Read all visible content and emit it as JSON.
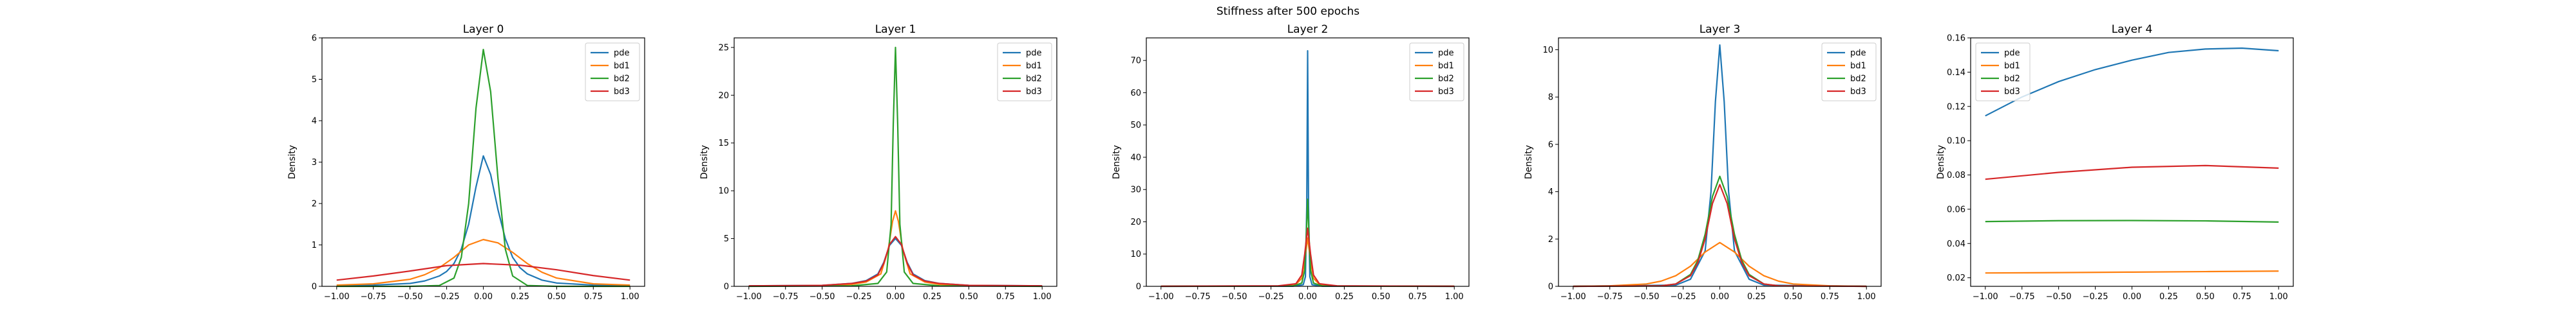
{
  "figure": {
    "suptitle": "Stiffness after 500 epochs"
  },
  "colors": {
    "pde": "#1f77b4",
    "bd1": "#ff7f0e",
    "bd2": "#2ca02c",
    "bd3": "#d62728",
    "axes": "#000000",
    "background": "#ffffff"
  },
  "chart_data": [
    {
      "type": "line",
      "title": "Layer 0",
      "xlabel": "",
      "ylabel": "Density",
      "xlim": [
        -1.1,
        1.1
      ],
      "ylim": [
        0,
        6
      ],
      "xticks": [
        -1.0,
        -0.75,
        -0.5,
        -0.25,
        0.0,
        0.25,
        0.5,
        0.75,
        1.0
      ],
      "xtick_labels": [
        "−1.00",
        "−0.75",
        "−0.50",
        "−0.25",
        "0.00",
        "0.25",
        "0.50",
        "0.75",
        "1.00"
      ],
      "yticks": [
        0,
        1,
        2,
        3,
        4,
        5,
        6
      ],
      "ytick_labels": [
        "0",
        "1",
        "2",
        "3",
        "4",
        "5",
        "6"
      ],
      "legend_position": "top-right",
      "grid": false,
      "series": [
        {
          "name": "pde",
          "x": [
            -1.0,
            -0.75,
            -0.5,
            -0.4,
            -0.3,
            -0.25,
            -0.2,
            -0.15,
            -0.1,
            -0.05,
            0.0,
            0.05,
            0.1,
            0.15,
            0.2,
            0.25,
            0.3,
            0.4,
            0.5,
            0.75,
            1.0
          ],
          "y": [
            0.02,
            0.03,
            0.07,
            0.13,
            0.25,
            0.36,
            0.55,
            0.9,
            1.5,
            2.4,
            3.15,
            2.7,
            1.85,
            1.15,
            0.7,
            0.45,
            0.3,
            0.15,
            0.08,
            0.03,
            0.02
          ]
        },
        {
          "name": "bd1",
          "x": [
            -1.0,
            -0.75,
            -0.5,
            -0.4,
            -0.3,
            -0.2,
            -0.1,
            0.0,
            0.1,
            0.2,
            0.3,
            0.4,
            0.5,
            0.75,
            1.0
          ],
          "y": [
            0.03,
            0.06,
            0.17,
            0.28,
            0.45,
            0.7,
            1.0,
            1.13,
            1.05,
            0.82,
            0.55,
            0.34,
            0.2,
            0.06,
            0.03
          ]
        },
        {
          "name": "bd2",
          "x": [
            -1.0,
            -0.5,
            -0.3,
            -0.2,
            -0.15,
            -0.1,
            -0.05,
            0.0,
            0.05,
            0.1,
            0.15,
            0.2,
            0.3,
            0.5,
            1.0
          ],
          "y": [
            0.0,
            0.0,
            0.02,
            0.2,
            0.7,
            2.0,
            4.3,
            5.72,
            4.7,
            2.6,
            0.9,
            0.25,
            0.02,
            0.0,
            0.0
          ]
        },
        {
          "name": "bd3",
          "x": [
            -1.0,
            -0.75,
            -0.5,
            -0.25,
            0.0,
            0.25,
            0.5,
            0.75,
            1.0
          ],
          "y": [
            0.15,
            0.25,
            0.37,
            0.5,
            0.55,
            0.51,
            0.4,
            0.26,
            0.15
          ]
        }
      ]
    },
    {
      "type": "line",
      "title": "Layer 1",
      "xlabel": "",
      "ylabel": "Density",
      "xlim": [
        -1.1,
        1.1
      ],
      "ylim": [
        0,
        26
      ],
      "xticks": [
        -1.0,
        -0.75,
        -0.5,
        -0.25,
        0.0,
        0.25,
        0.5,
        0.75,
        1.0
      ],
      "xtick_labels": [
        "−1.00",
        "−0.75",
        "−0.50",
        "−0.25",
        "0.00",
        "0.25",
        "0.50",
        "0.75",
        "1.00"
      ],
      "yticks": [
        0,
        5,
        10,
        15,
        20,
        25
      ],
      "ytick_labels": [
        "0",
        "5",
        "10",
        "15",
        "20",
        "25"
      ],
      "legend_position": "top-right",
      "grid": false,
      "series": [
        {
          "name": "pde",
          "x": [
            -1.0,
            -0.5,
            -0.3,
            -0.2,
            -0.12,
            -0.08,
            -0.04,
            0.0,
            0.04,
            0.08,
            0.12,
            0.2,
            0.3,
            0.5,
            1.0
          ],
          "y": [
            0.05,
            0.1,
            0.3,
            0.6,
            1.3,
            2.5,
            4.3,
            5.0,
            4.3,
            2.5,
            1.3,
            0.6,
            0.3,
            0.1,
            0.05
          ]
        },
        {
          "name": "bd1",
          "x": [
            -1.0,
            -0.5,
            -0.3,
            -0.2,
            -0.1,
            -0.05,
            -0.02,
            0.0,
            0.02,
            0.05,
            0.1,
            0.2,
            0.3,
            0.5,
            1.0
          ],
          "y": [
            0.02,
            0.08,
            0.2,
            0.45,
            1.3,
            3.8,
            6.8,
            7.9,
            6.8,
            3.8,
            1.3,
            0.45,
            0.2,
            0.08,
            0.02
          ]
        },
        {
          "name": "bd2",
          "x": [
            -1.0,
            -0.3,
            -0.12,
            -0.06,
            -0.03,
            -0.015,
            0.0,
            0.015,
            0.03,
            0.06,
            0.12,
            0.3,
            1.0
          ],
          "y": [
            0.0,
            0.05,
            0.3,
            1.5,
            6.5,
            17.0,
            25.0,
            17.0,
            6.5,
            1.5,
            0.3,
            0.05,
            0.0
          ]
        },
        {
          "name": "bd3",
          "x": [
            -1.0,
            -0.5,
            -0.3,
            -0.2,
            -0.12,
            -0.08,
            -0.04,
            0.0,
            0.04,
            0.08,
            0.12,
            0.2,
            0.3,
            0.5,
            1.0
          ],
          "y": [
            0.05,
            0.1,
            0.3,
            0.55,
            1.2,
            2.4,
            4.4,
            5.2,
            4.4,
            2.4,
            1.2,
            0.55,
            0.3,
            0.1,
            0.05
          ]
        }
      ]
    },
    {
      "type": "line",
      "title": "Layer 2",
      "xlabel": "",
      "ylabel": "Density",
      "xlim": [
        -1.1,
        1.1
      ],
      "ylim": [
        0,
        77
      ],
      "xticks": [
        -1.0,
        -0.75,
        -0.5,
        -0.25,
        0.0,
        0.25,
        0.5,
        0.75,
        1.0
      ],
      "xtick_labels": [
        "−1.00",
        "−0.75",
        "−0.50",
        "−0.25",
        "0.00",
        "0.25",
        "0.50",
        "0.75",
        "1.00"
      ],
      "yticks": [
        0,
        10,
        20,
        30,
        40,
        50,
        60,
        70
      ],
      "ytick_labels": [
        "0",
        "10",
        "20",
        "30",
        "40",
        "50",
        "60",
        "70"
      ],
      "legend_position": "top-right",
      "grid": false,
      "series": [
        {
          "name": "pde",
          "x": [
            -1.0,
            -0.1,
            -0.03,
            -0.015,
            -0.006,
            0.0,
            0.006,
            0.015,
            0.03,
            0.1,
            1.0
          ],
          "y": [
            0.0,
            0.05,
            0.5,
            3.0,
            25.0,
            73.0,
            25.0,
            3.0,
            0.5,
            0.05,
            0.0
          ]
        },
        {
          "name": "bd1",
          "x": [
            -1.0,
            -0.2,
            -0.08,
            -0.04,
            -0.02,
            0.0,
            0.02,
            0.04,
            0.08,
            0.2,
            1.0
          ],
          "y": [
            0.02,
            0.1,
            0.6,
            2.5,
            8.0,
            15.0,
            8.0,
            2.5,
            0.6,
            0.1,
            0.02
          ]
        },
        {
          "name": "bd2",
          "x": [
            -1.0,
            -0.1,
            -0.04,
            -0.02,
            -0.01,
            0.0,
            0.01,
            0.02,
            0.04,
            0.1,
            1.0
          ],
          "y": [
            0.0,
            0.1,
            1.0,
            5.0,
            15.0,
            27.0,
            15.0,
            5.0,
            1.0,
            0.1,
            0.0
          ]
        },
        {
          "name": "bd3",
          "x": [
            -1.0,
            -0.2,
            -0.08,
            -0.04,
            -0.02,
            0.0,
            0.02,
            0.04,
            0.08,
            0.2,
            1.0
          ],
          "y": [
            0.02,
            0.15,
            0.8,
            3.5,
            10.0,
            18.0,
            10.0,
            3.5,
            0.8,
            0.15,
            0.02
          ]
        }
      ]
    },
    {
      "type": "line",
      "title": "Layer 3",
      "xlabel": "",
      "ylabel": "Density",
      "xlim": [
        -1.1,
        1.1
      ],
      "ylim": [
        0,
        10.5
      ],
      "xticks": [
        -1.0,
        -0.75,
        -0.5,
        -0.25,
        0.0,
        0.25,
        0.5,
        0.75,
        1.0
      ],
      "xtick_labels": [
        "−1.00",
        "−0.75",
        "−0.50",
        "−0.25",
        "0.00",
        "0.25",
        "0.50",
        "0.75",
        "1.00"
      ],
      "yticks": [
        0,
        2,
        4,
        6,
        8,
        10
      ],
      "ytick_labels": [
        "0",
        "2",
        "4",
        "6",
        "8",
        "10"
      ],
      "legend_position": "top-right",
      "grid": false,
      "series": [
        {
          "name": "pde",
          "x": [
            -1.0,
            -0.3,
            -0.2,
            -0.1,
            -0.06,
            -0.03,
            0.0,
            0.03,
            0.06,
            0.1,
            0.2,
            0.3,
            1.0
          ],
          "y": [
            0.0,
            0.05,
            0.3,
            1.5,
            4.0,
            7.8,
            10.2,
            7.8,
            4.0,
            1.5,
            0.3,
            0.05,
            0.0
          ]
        },
        {
          "name": "bd1",
          "x": [
            -1.0,
            -0.75,
            -0.5,
            -0.4,
            -0.3,
            -0.2,
            -0.1,
            0.0,
            0.1,
            0.2,
            0.3,
            0.4,
            0.5,
            0.75,
            1.0
          ],
          "y": [
            0.0,
            0.02,
            0.1,
            0.22,
            0.45,
            0.85,
            1.45,
            1.85,
            1.45,
            0.85,
            0.45,
            0.22,
            0.1,
            0.02,
            0.0
          ]
        },
        {
          "name": "bd2",
          "x": [
            -1.0,
            -0.4,
            -0.3,
            -0.2,
            -0.15,
            -0.1,
            -0.05,
            0.0,
            0.05,
            0.1,
            0.15,
            0.2,
            0.3,
            0.4,
            1.0
          ],
          "y": [
            0.0,
            0.02,
            0.1,
            0.5,
            1.1,
            2.2,
            3.8,
            4.65,
            3.8,
            2.2,
            1.1,
            0.5,
            0.1,
            0.02,
            0.0
          ]
        },
        {
          "name": "bd3",
          "x": [
            -1.0,
            -0.4,
            -0.3,
            -0.2,
            -0.15,
            -0.1,
            -0.05,
            0.0,
            0.05,
            0.1,
            0.15,
            0.2,
            0.3,
            0.4,
            1.0
          ],
          "y": [
            0.0,
            0.02,
            0.1,
            0.45,
            1.0,
            2.0,
            3.5,
            4.3,
            3.5,
            2.0,
            1.0,
            0.45,
            0.1,
            0.02,
            0.0
          ]
        }
      ]
    },
    {
      "type": "line",
      "title": "Layer 4",
      "xlabel": "",
      "ylabel": "Density",
      "xlim": [
        -1.1,
        1.1
      ],
      "ylim": [
        0.015,
        0.16
      ],
      "xticks": [
        -1.0,
        -0.75,
        -0.5,
        -0.25,
        0.0,
        0.25,
        0.5,
        0.75,
        1.0
      ],
      "xtick_labels": [
        "−1.00",
        "−0.75",
        "−0.50",
        "−0.25",
        "0.00",
        "0.25",
        "0.50",
        "0.75",
        "1.00"
      ],
      "yticks": [
        0.02,
        0.04,
        0.06,
        0.08,
        0.1,
        0.12,
        0.14,
        0.16
      ],
      "ytick_labels": [
        "0.02",
        "0.04",
        "0.06",
        "0.08",
        "0.10",
        "0.12",
        "0.14",
        "0.16"
      ],
      "legend_position": "top-left",
      "grid": false,
      "series": [
        {
          "name": "pde",
          "x": [
            -1.0,
            -0.75,
            -0.5,
            -0.25,
            0.0,
            0.25,
            0.5,
            0.75,
            1.0
          ],
          "y": [
            0.1145,
            0.1255,
            0.1345,
            0.1415,
            0.147,
            0.1515,
            0.1535,
            0.154,
            0.1525
          ]
        },
        {
          "name": "bd1",
          "x": [
            -1.0,
            -0.5,
            0.0,
            0.5,
            1.0
          ],
          "y": [
            0.0228,
            0.023,
            0.0233,
            0.0236,
            0.0239
          ]
        },
        {
          "name": "bd2",
          "x": [
            -1.0,
            -0.5,
            0.0,
            0.5,
            1.0
          ],
          "y": [
            0.0528,
            0.0533,
            0.0534,
            0.0532,
            0.0525
          ]
        },
        {
          "name": "bd3",
          "x": [
            -1.0,
            -0.5,
            0.0,
            0.5,
            1.0
          ],
          "y": [
            0.0775,
            0.0815,
            0.0845,
            0.0855,
            0.084
          ]
        }
      ]
    }
  ]
}
